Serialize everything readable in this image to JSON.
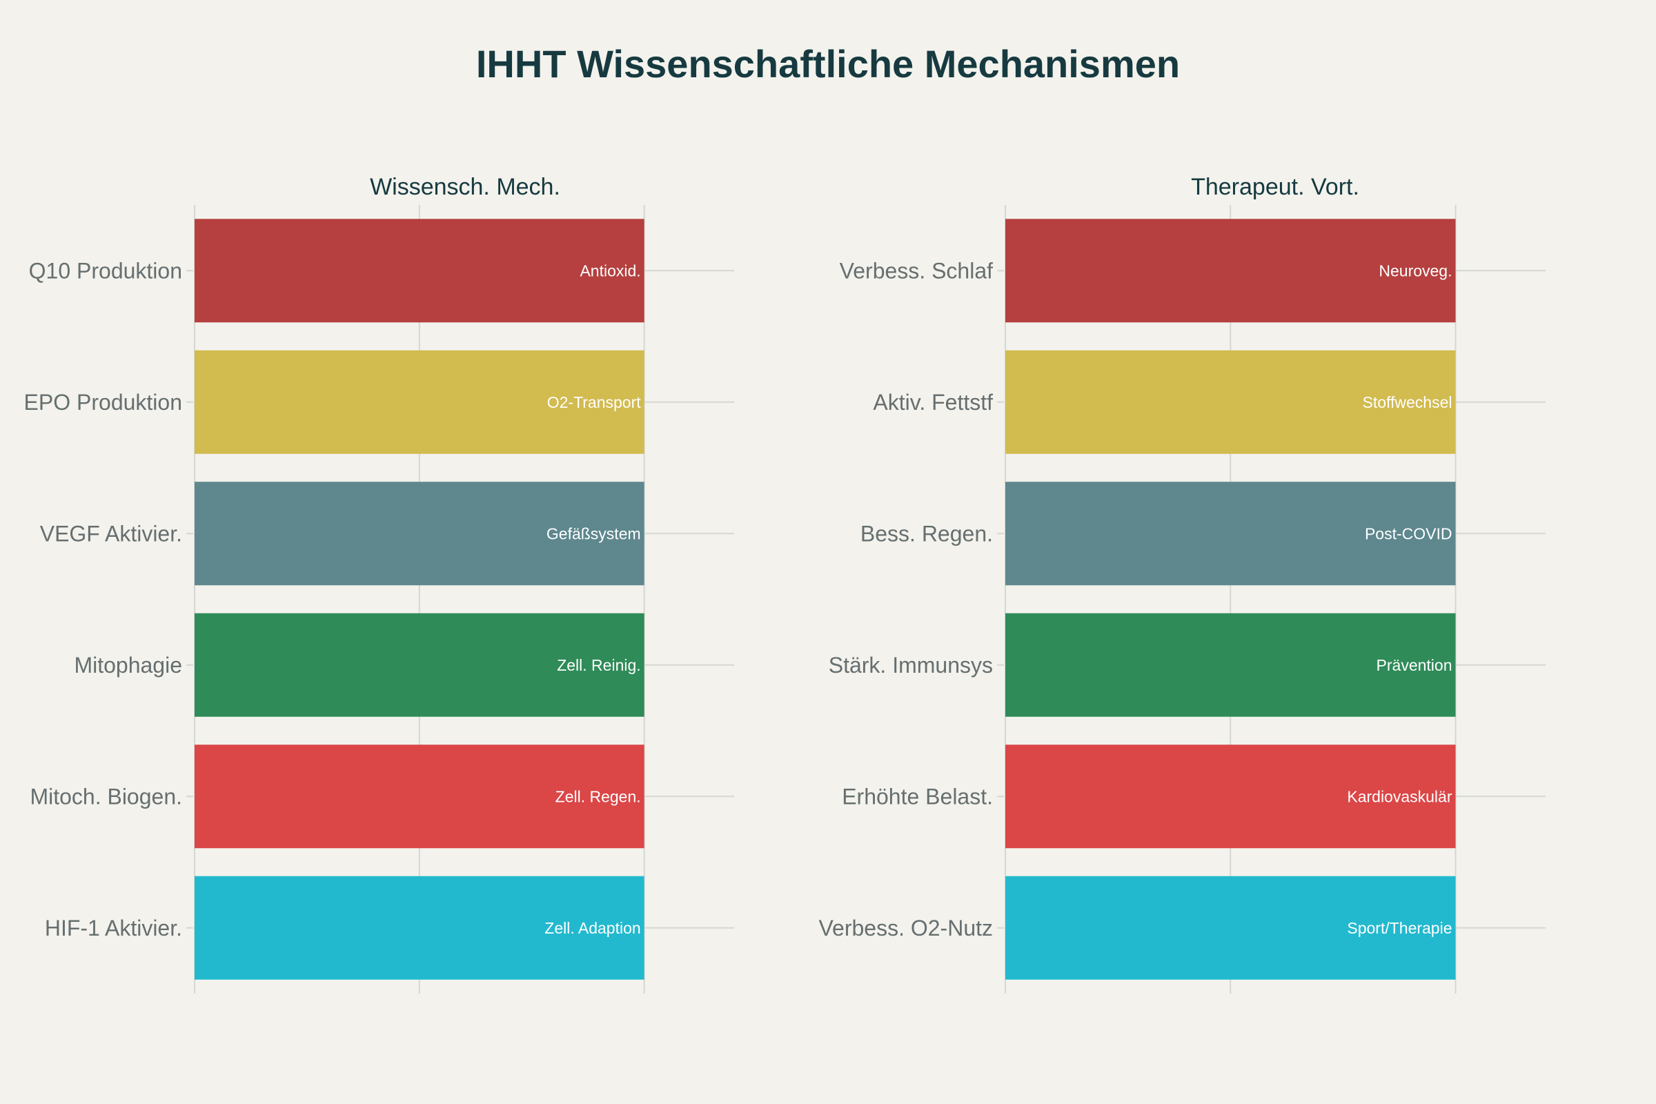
{
  "chart_data": {
    "title": "IHHT Wissenschaftliche Mechanismen",
    "type": "bar",
    "orientation": "horizontal",
    "grid": true,
    "xlim": [
      0,
      1.2
    ],
    "panels": [
      {
        "title": "Wissensch. Mech.",
        "categories": [
          "Q10 Produktion",
          "EPO Produktion",
          "VEGF Aktivier.",
          "Mitophagie",
          "Mitoch. Biogen.",
          "HIF-1 Aktivier."
        ],
        "values": [
          1,
          1,
          1,
          1,
          1,
          1
        ],
        "bar_labels": [
          "Antioxid.",
          "O2-Transport",
          "Gefäßsystem",
          "Zell. Reinig.",
          "Zell. Regen.",
          "Zell. Adaption"
        ],
        "colors": [
          "#b5403f",
          "#d2bb4f",
          "#5e878e",
          "#2f8b58",
          "#db4647",
          "#22b9cf"
        ]
      },
      {
        "title": "Therapeut. Vort.",
        "categories": [
          "Verbess. Schlaf",
          "Aktiv. Fettstf",
          "Bess. Regen.",
          "Stärk. Immunsys",
          "Erhöhte Belast.",
          "Verbess. O2-Nutz"
        ],
        "values": [
          1,
          1,
          1,
          1,
          1,
          1
        ],
        "bar_labels": [
          "Neuroveg.",
          "Stoffwechsel",
          "Post-COVID",
          "Prävention",
          "Kardiovaskulär",
          "Sport/Therapie"
        ],
        "colors": [
          "#b5403f",
          "#d2bb4f",
          "#5e878e",
          "#2f8b58",
          "#db4647",
          "#22b9cf"
        ]
      }
    ]
  }
}
